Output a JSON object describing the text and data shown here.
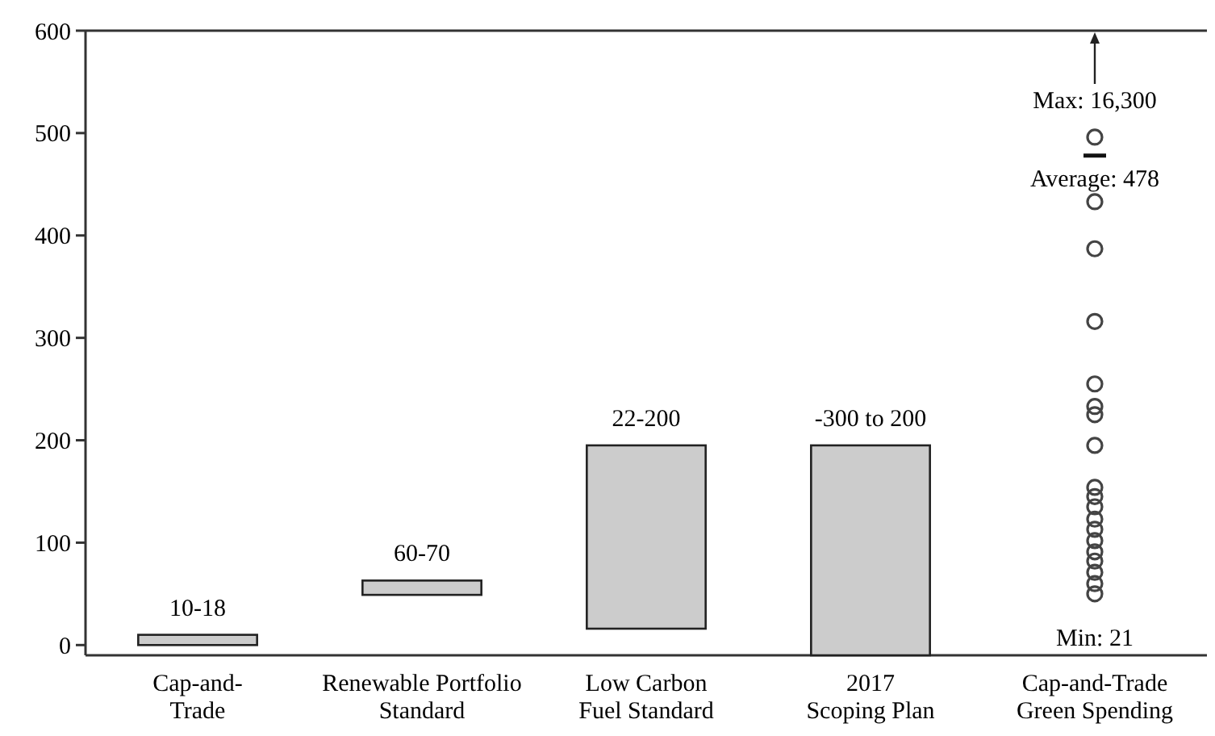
{
  "chart_data": {
    "type": "bar",
    "categories": [
      "Cap-and-\nTrade",
      "Renewable Portfolio\nStandard",
      "Low Carbon\nFuel Standard",
      "2017\nScoping Plan",
      "Cap-and-Trade\nGreen Spending"
    ],
    "series": [
      {
        "color": "#cccccc",
        "values": [
          10,
          14,
          179,
          205,
          null
        ],
        "base": [
          0,
          49,
          16,
          -10,
          null
        ],
        "value_labels": [
          "10-18",
          "60-70",
          "22-200",
          null,
          null
        ]
      },
      {
        "type": "scatter",
        "color": "#444444",
        "marker": "circle",
        "x": [
          "Cap-and-Trade\nGreen Spending",
          "Cap-and-Trade\nGreen Spending",
          "Cap-and-Trade\nGreen Spending",
          "Cap-and-Trade\nGreen Spending",
          "Cap-and-Trade\nGreen Spending",
          "Cap-and-Trade\nGreen Spending",
          "Cap-and-Trade\nGreen Spending",
          "Cap-and-Trade\nGreen Spending",
          "Cap-and-Trade\nGreen Spending",
          "Cap-and-Trade\nGreen Spending",
          "Cap-and-Trade\nGreen Spending",
          "Cap-and-Trade\nGreen Spending",
          "Cap-and-Trade\nGreen Spending",
          "Cap-and-Trade\nGreen Spending",
          "Cap-and-Trade\nGreen Spending",
          "Cap-and-Trade\nGreen Spending",
          "Cap-and-Trade\nGreen Spending",
          "Cap-and-Trade\nGreen Spending",
          "Cap-and-Trade\nGreen Spending"
        ],
        "values": [
          496,
          433,
          387,
          316,
          255,
          233,
          225,
          195,
          154,
          145,
          135,
          123,
          113,
          102,
          91,
          82,
          71,
          60,
          50
        ]
      }
    ],
    "ylim": [
      -10,
      600
    ],
    "yticks": [
      0,
      100,
      200,
      300,
      400,
      500,
      600
    ],
    "ref_lines": [
      {
        "axis": "y",
        "value": 478,
        "label": "Average: 478"
      }
    ],
    "annotations": [
      "Max: 16,300",
      {
        "text": "-300 to 200",
        "x": "2017\nScoping Plan",
        "y": 195
      },
      "Min: 21"
    ]
  }
}
